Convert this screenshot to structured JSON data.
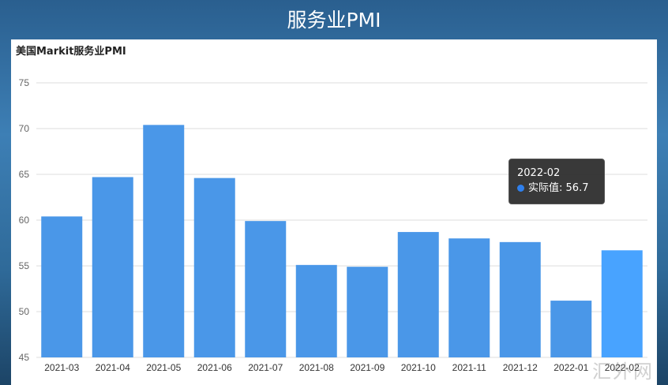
{
  "page": {
    "title": "服务业PMI",
    "watermark": "汇外网"
  },
  "chart_data": {
    "type": "bar",
    "title": "美国Markit服务业PMI",
    "categories": [
      "2021-03",
      "2021-04",
      "2021-05",
      "2021-06",
      "2021-07",
      "2021-08",
      "2021-09",
      "2021-10",
      "2021-11",
      "2021-12",
      "2022-01",
      "2022-02"
    ],
    "values": [
      60.4,
      64.7,
      70.4,
      64.6,
      59.9,
      55.1,
      54.9,
      58.7,
      58.0,
      57.6,
      51.2,
      56.7
    ],
    "ylim": [
      45,
      75
    ],
    "yticks": [
      "75",
      "70",
      "65",
      "60",
      "55",
      "50",
      "45"
    ],
    "grid": true,
    "bar_color": "#4a97e8",
    "highlight_color": "#48a3ff",
    "tooltip": {
      "label": "2022-02",
      "series": "实际值",
      "value": "56.7"
    }
  }
}
